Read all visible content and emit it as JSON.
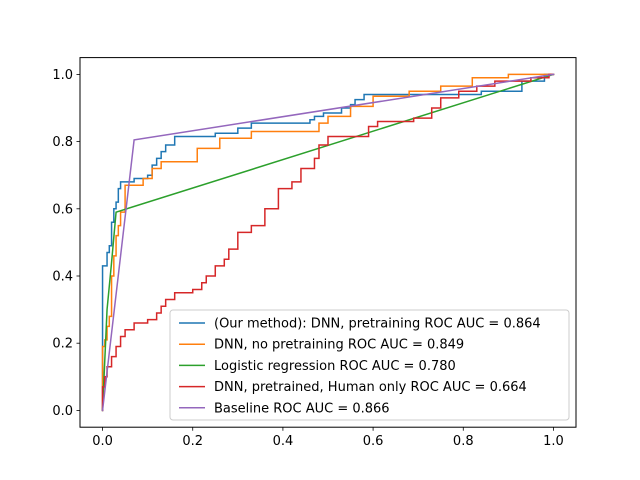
{
  "chart_data": {
    "type": "line",
    "title": "",
    "xlabel": "",
    "ylabel": "",
    "xlim": [
      -0.05,
      1.05
    ],
    "ylim": [
      -0.05,
      1.05
    ],
    "xticks": [
      0.0,
      0.2,
      0.4,
      0.6,
      0.8,
      1.0
    ],
    "xtick_labels": [
      "0.0",
      "0.2",
      "0.4",
      "0.6",
      "0.8",
      "1.0"
    ],
    "yticks": [
      0.0,
      0.2,
      0.4,
      0.6,
      0.8,
      1.0
    ],
    "ytick_labels": [
      "0.0",
      "0.2",
      "0.4",
      "0.6",
      "0.8",
      "1.0"
    ],
    "grid": false,
    "legend_position": "lower-right",
    "series": [
      {
        "name": "(Our method): DNN, pretraining ROC AUC = 0.864",
        "color": "#1f77b4",
        "step": true,
        "points": [
          [
            0,
            0
          ],
          [
            0,
            0.43
          ],
          [
            0.01,
            0.43
          ],
          [
            0.01,
            0.47
          ],
          [
            0.015,
            0.47
          ],
          [
            0.015,
            0.49
          ],
          [
            0.02,
            0.49
          ],
          [
            0.02,
            0.56
          ],
          [
            0.025,
            0.56
          ],
          [
            0.025,
            0.6
          ],
          [
            0.03,
            0.6
          ],
          [
            0.03,
            0.62
          ],
          [
            0.035,
            0.62
          ],
          [
            0.035,
            0.66
          ],
          [
            0.04,
            0.66
          ],
          [
            0.04,
            0.68
          ],
          [
            0.07,
            0.68
          ],
          [
            0.07,
            0.69
          ],
          [
            0.1,
            0.69
          ],
          [
            0.1,
            0.7
          ],
          [
            0.11,
            0.7
          ],
          [
            0.11,
            0.73
          ],
          [
            0.12,
            0.73
          ],
          [
            0.12,
            0.75
          ],
          [
            0.13,
            0.75
          ],
          [
            0.13,
            0.77
          ],
          [
            0.14,
            0.77
          ],
          [
            0.14,
            0.79
          ],
          [
            0.16,
            0.79
          ],
          [
            0.16,
            0.815
          ],
          [
            0.25,
            0.815
          ],
          [
            0.25,
            0.825
          ],
          [
            0.3,
            0.825
          ],
          [
            0.3,
            0.84
          ],
          [
            0.33,
            0.84
          ],
          [
            0.33,
            0.855
          ],
          [
            0.46,
            0.855
          ],
          [
            0.46,
            0.865
          ],
          [
            0.47,
            0.865
          ],
          [
            0.47,
            0.875
          ],
          [
            0.49,
            0.875
          ],
          [
            0.49,
            0.885
          ],
          [
            0.53,
            0.885
          ],
          [
            0.53,
            0.9
          ],
          [
            0.55,
            0.9
          ],
          [
            0.55,
            0.91
          ],
          [
            0.56,
            0.91
          ],
          [
            0.56,
            0.925
          ],
          [
            0.58,
            0.925
          ],
          [
            0.58,
            0.94
          ],
          [
            0.84,
            0.94
          ],
          [
            0.84,
            0.95
          ],
          [
            0.93,
            0.95
          ],
          [
            0.93,
            0.98
          ],
          [
            0.98,
            0.98
          ],
          [
            0.98,
            1.0
          ],
          [
            1.0,
            1.0
          ]
        ]
      },
      {
        "name": "DNN, no pretraining ROC AUC = 0.849",
        "color": "#ff7f0e",
        "step": true,
        "points": [
          [
            0,
            0
          ],
          [
            0,
            0.19
          ],
          [
            0.005,
            0.19
          ],
          [
            0.005,
            0.21
          ],
          [
            0.01,
            0.21
          ],
          [
            0.01,
            0.25
          ],
          [
            0.015,
            0.25
          ],
          [
            0.015,
            0.28
          ],
          [
            0.02,
            0.28
          ],
          [
            0.02,
            0.4
          ],
          [
            0.025,
            0.4
          ],
          [
            0.025,
            0.46
          ],
          [
            0.03,
            0.46
          ],
          [
            0.03,
            0.52
          ],
          [
            0.035,
            0.52
          ],
          [
            0.035,
            0.55
          ],
          [
            0.04,
            0.55
          ],
          [
            0.04,
            0.59
          ],
          [
            0.05,
            0.59
          ],
          [
            0.05,
            0.67
          ],
          [
            0.09,
            0.67
          ],
          [
            0.09,
            0.69
          ],
          [
            0.11,
            0.69
          ],
          [
            0.11,
            0.72
          ],
          [
            0.13,
            0.72
          ],
          [
            0.13,
            0.74
          ],
          [
            0.21,
            0.74
          ],
          [
            0.21,
            0.78
          ],
          [
            0.26,
            0.78
          ],
          [
            0.26,
            0.81
          ],
          [
            0.33,
            0.81
          ],
          [
            0.33,
            0.83
          ],
          [
            0.48,
            0.83
          ],
          [
            0.48,
            0.855
          ],
          [
            0.5,
            0.855
          ],
          [
            0.5,
            0.875
          ],
          [
            0.55,
            0.875
          ],
          [
            0.55,
            0.905
          ],
          [
            0.6,
            0.905
          ],
          [
            0.6,
            0.935
          ],
          [
            0.68,
            0.935
          ],
          [
            0.68,
            0.95
          ],
          [
            0.75,
            0.95
          ],
          [
            0.75,
            0.965
          ],
          [
            0.82,
            0.965
          ],
          [
            0.82,
            0.99
          ],
          [
            0.9,
            0.99
          ],
          [
            0.9,
            1.0
          ],
          [
            1.0,
            1.0
          ]
        ]
      },
      {
        "name": "Logistic regression ROC AUC = 0.780",
        "color": "#2ca02c",
        "step": false,
        "points": [
          [
            0,
            0
          ],
          [
            0.005,
            0.15
          ],
          [
            0.01,
            0.3
          ],
          [
            0.02,
            0.44
          ],
          [
            0.03,
            0.59
          ],
          [
            1.0,
            1.0
          ]
        ]
      },
      {
        "name": "DNN, pretrained, Human only ROC AUC = 0.664",
        "color": "#d62728",
        "step": true,
        "points": [
          [
            0,
            0
          ],
          [
            0,
            0.07
          ],
          [
            0.005,
            0.07
          ],
          [
            0.005,
            0.1
          ],
          [
            0.01,
            0.1
          ],
          [
            0.01,
            0.13
          ],
          [
            0.02,
            0.13
          ],
          [
            0.02,
            0.16
          ],
          [
            0.03,
            0.16
          ],
          [
            0.03,
            0.19
          ],
          [
            0.04,
            0.19
          ],
          [
            0.04,
            0.22
          ],
          [
            0.05,
            0.22
          ],
          [
            0.05,
            0.24
          ],
          [
            0.07,
            0.24
          ],
          [
            0.07,
            0.26
          ],
          [
            0.1,
            0.26
          ],
          [
            0.1,
            0.27
          ],
          [
            0.12,
            0.27
          ],
          [
            0.12,
            0.29
          ],
          [
            0.13,
            0.29
          ],
          [
            0.13,
            0.31
          ],
          [
            0.14,
            0.31
          ],
          [
            0.14,
            0.33
          ],
          [
            0.16,
            0.33
          ],
          [
            0.16,
            0.35
          ],
          [
            0.2,
            0.35
          ],
          [
            0.2,
            0.36
          ],
          [
            0.22,
            0.36
          ],
          [
            0.22,
            0.38
          ],
          [
            0.23,
            0.38
          ],
          [
            0.23,
            0.4
          ],
          [
            0.25,
            0.4
          ],
          [
            0.25,
            0.43
          ],
          [
            0.27,
            0.43
          ],
          [
            0.27,
            0.45
          ],
          [
            0.28,
            0.45
          ],
          [
            0.28,
            0.48
          ],
          [
            0.3,
            0.48
          ],
          [
            0.3,
            0.53
          ],
          [
            0.33,
            0.53
          ],
          [
            0.33,
            0.55
          ],
          [
            0.36,
            0.55
          ],
          [
            0.36,
            0.6
          ],
          [
            0.39,
            0.6
          ],
          [
            0.39,
            0.66
          ],
          [
            0.42,
            0.66
          ],
          [
            0.42,
            0.68
          ],
          [
            0.44,
            0.68
          ],
          [
            0.44,
            0.72
          ],
          [
            0.47,
            0.72
          ],
          [
            0.47,
            0.75
          ],
          [
            0.48,
            0.75
          ],
          [
            0.48,
            0.79
          ],
          [
            0.5,
            0.79
          ],
          [
            0.5,
            0.815
          ],
          [
            0.59,
            0.815
          ],
          [
            0.59,
            0.845
          ],
          [
            0.61,
            0.845
          ],
          [
            0.61,
            0.86
          ],
          [
            0.69,
            0.86
          ],
          [
            0.69,
            0.87
          ],
          [
            0.73,
            0.87
          ],
          [
            0.73,
            0.9
          ],
          [
            0.75,
            0.9
          ],
          [
            0.75,
            0.93
          ],
          [
            0.79,
            0.93
          ],
          [
            0.79,
            0.95
          ],
          [
            0.83,
            0.95
          ],
          [
            0.83,
            0.965
          ],
          [
            0.87,
            0.965
          ],
          [
            0.87,
            0.98
          ],
          [
            0.95,
            0.98
          ],
          [
            0.95,
            0.99
          ],
          [
            0.99,
            0.99
          ],
          [
            0.99,
            1.0
          ],
          [
            1.0,
            1.0
          ]
        ]
      },
      {
        "name": "Baseline ROC AUC = 0.866",
        "color": "#9467bd",
        "step": false,
        "points": [
          [
            0,
            0
          ],
          [
            0.07,
            0.805
          ],
          [
            1.0,
            1.0
          ]
        ]
      }
    ]
  }
}
